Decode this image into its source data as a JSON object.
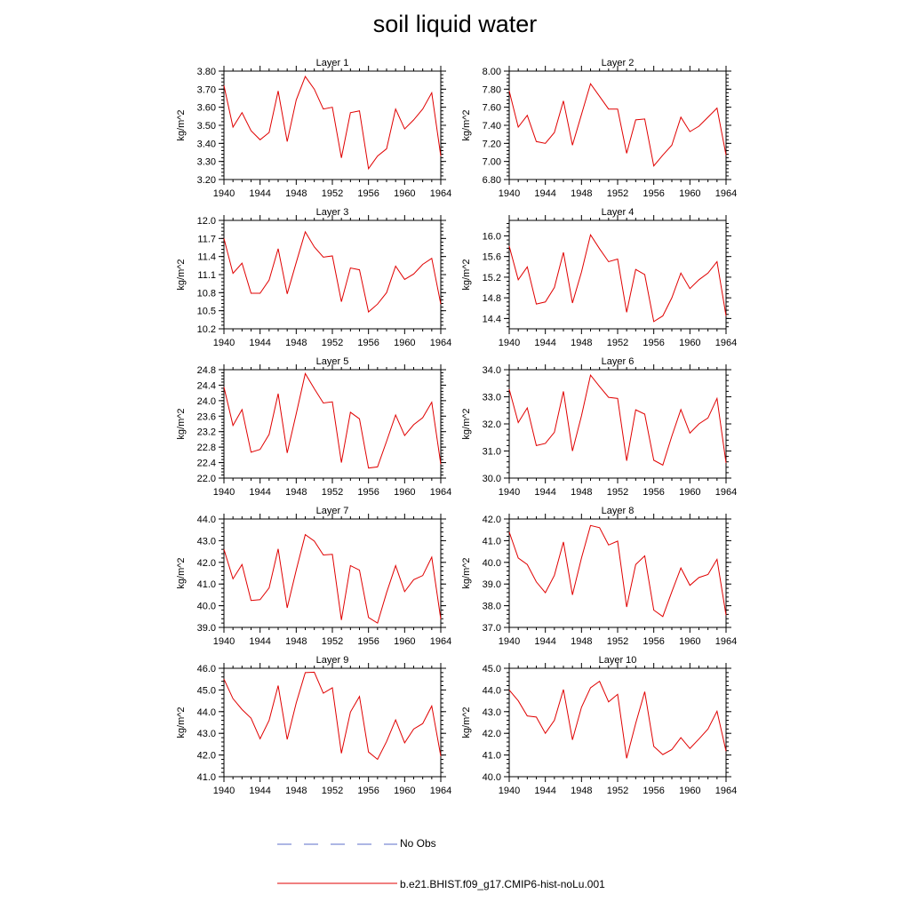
{
  "title": "soil liquid water",
  "colors": {
    "model_line": "#e00000",
    "obs_line": "#5b6ec8",
    "axis": "#000000"
  },
  "legend": {
    "obs_label": "No Obs",
    "model_label": "b.e21.BHIST.f09_g17.CMIP6-hist-noLu.001"
  },
  "chart_data": [
    {
      "type": "line",
      "title": "Layer 1",
      "ylabel": "kg/m^2",
      "xlim": [
        1940,
        1964
      ],
      "xticks": [
        1940,
        1944,
        1948,
        1952,
        1956,
        1960,
        1964
      ],
      "ylim": [
        3.2,
        3.8
      ],
      "yticks": [
        3.2,
        3.3,
        3.4,
        3.5,
        3.6,
        3.7,
        3.8
      ],
      "ydecimals": 2,
      "x": [
        1940,
        1941,
        1942,
        1943,
        1944,
        1945,
        1946,
        1947,
        1948,
        1949,
        1950,
        1951,
        1952,
        1953,
        1954,
        1955,
        1956,
        1957,
        1958,
        1959,
        1960,
        1961,
        1962,
        1963,
        1964
      ],
      "series": [
        {
          "name": "b.e21.BHIST.f09_g17.CMIP6-hist-noLu.001",
          "values": [
            3.72,
            3.49,
            3.57,
            3.47,
            3.42,
            3.46,
            3.69,
            3.41,
            3.64,
            3.77,
            3.7,
            3.59,
            3.6,
            3.32,
            3.57,
            3.58,
            3.26,
            3.33,
            3.37,
            3.59,
            3.48,
            3.53,
            3.59,
            3.68,
            3.33
          ]
        }
      ]
    },
    {
      "type": "line",
      "title": "Layer 2",
      "ylabel": "kg/m^2",
      "xlim": [
        1940,
        1964
      ],
      "xticks": [
        1940,
        1944,
        1948,
        1952,
        1956,
        1960,
        1964
      ],
      "ylim": [
        6.8,
        8.0
      ],
      "yticks": [
        6.8,
        7.0,
        7.2,
        7.4,
        7.6,
        7.8,
        8.0
      ],
      "ydecimals": 2,
      "x": [
        1940,
        1941,
        1942,
        1943,
        1944,
        1945,
        1946,
        1947,
        1948,
        1949,
        1950,
        1951,
        1952,
        1953,
        1954,
        1955,
        1956,
        1957,
        1958,
        1959,
        1960,
        1961,
        1962,
        1963,
        1964
      ],
      "series": [
        {
          "name": "b.e21.BHIST.f09_g17.CMIP6-hist-noLu.001",
          "values": [
            7.78,
            7.38,
            7.51,
            7.22,
            7.2,
            7.32,
            7.67,
            7.18,
            7.52,
            7.86,
            7.72,
            7.58,
            7.58,
            7.09,
            7.46,
            7.47,
            6.95,
            7.07,
            7.18,
            7.49,
            7.33,
            7.39,
            7.49,
            7.59,
            7.07
          ]
        }
      ]
    },
    {
      "type": "line",
      "title": "Layer 3",
      "ylabel": "kg/m^2",
      "xlim": [
        1940,
        1964
      ],
      "xticks": [
        1940,
        1944,
        1948,
        1952,
        1956,
        1960,
        1964
      ],
      "ylim": [
        10.2,
        12.0
      ],
      "yticks": [
        10.2,
        10.5,
        10.8,
        11.1,
        11.4,
        11.7,
        12.0
      ],
      "ydecimals": 1,
      "x": [
        1940,
        1941,
        1942,
        1943,
        1944,
        1945,
        1946,
        1947,
        1948,
        1949,
        1950,
        1951,
        1952,
        1953,
        1954,
        1955,
        1956,
        1957,
        1958,
        1959,
        1960,
        1961,
        1962,
        1963,
        1964
      ],
      "series": [
        {
          "name": "b.e21.BHIST.f09_g17.CMIP6-hist-noLu.001",
          "values": [
            11.7,
            11.12,
            11.29,
            10.79,
            10.79,
            11.01,
            11.53,
            10.78,
            11.3,
            11.81,
            11.56,
            11.39,
            11.41,
            10.65,
            11.21,
            11.18,
            10.48,
            10.61,
            10.8,
            11.24,
            11.02,
            11.11,
            11.27,
            11.37,
            10.61
          ]
        }
      ]
    },
    {
      "type": "line",
      "title": "Layer 4",
      "ylabel": "kg/m^2",
      "xlim": [
        1940,
        1964
      ],
      "xticks": [
        1940,
        1944,
        1948,
        1952,
        1956,
        1960,
        1964
      ],
      "ylim": [
        14.2,
        16.3
      ],
      "yticks": [
        14.4,
        14.8,
        15.2,
        15.6,
        16.0
      ],
      "ydecimals": 1,
      "x": [
        1940,
        1941,
        1942,
        1943,
        1944,
        1945,
        1946,
        1947,
        1948,
        1949,
        1950,
        1951,
        1952,
        1953,
        1954,
        1955,
        1956,
        1957,
        1958,
        1959,
        1960,
        1961,
        1962,
        1963,
        1964
      ],
      "series": [
        {
          "name": "b.e21.BHIST.f09_g17.CMIP6-hist-noLu.001",
          "values": [
            15.8,
            15.15,
            15.4,
            14.68,
            14.72,
            15.0,
            15.68,
            14.7,
            15.3,
            16.02,
            15.75,
            15.5,
            15.55,
            14.52,
            15.35,
            15.25,
            14.34,
            14.45,
            14.8,
            15.28,
            14.98,
            15.15,
            15.28,
            15.5,
            14.45
          ]
        }
      ]
    },
    {
      "type": "line",
      "title": "Layer 5",
      "ylabel": "kg/m^2",
      "xlim": [
        1940,
        1964
      ],
      "xticks": [
        1940,
        1944,
        1948,
        1952,
        1956,
        1960,
        1964
      ],
      "ylim": [
        22.0,
        24.8
      ],
      "yticks": [
        22.0,
        22.4,
        22.8,
        23.2,
        23.6,
        24.0,
        24.4,
        24.8
      ],
      "ydecimals": 1,
      "x": [
        1940,
        1941,
        1942,
        1943,
        1944,
        1945,
        1946,
        1947,
        1948,
        1949,
        1950,
        1951,
        1952,
        1953,
        1954,
        1955,
        1956,
        1957,
        1958,
        1959,
        1960,
        1961,
        1962,
        1963,
        1964
      ],
      "series": [
        {
          "name": "b.e21.BHIST.f09_g17.CMIP6-hist-noLu.001",
          "values": [
            24.35,
            23.36,
            23.77,
            22.67,
            22.74,
            23.13,
            24.18,
            22.65,
            23.66,
            24.7,
            24.31,
            23.94,
            23.97,
            22.4,
            23.7,
            23.53,
            22.26,
            22.29,
            22.95,
            23.63,
            23.1,
            23.38,
            23.56,
            23.96,
            22.36
          ]
        }
      ]
    },
    {
      "type": "line",
      "title": "Layer 6",
      "ylabel": "kg/m^2",
      "xlim": [
        1940,
        1964
      ],
      "xticks": [
        1940,
        1944,
        1948,
        1952,
        1956,
        1960,
        1964
      ],
      "ylim": [
        30.0,
        34.0
      ],
      "yticks": [
        30.0,
        31.0,
        32.0,
        33.0,
        34.0
      ],
      "ydecimals": 1,
      "x": [
        1940,
        1941,
        1942,
        1943,
        1944,
        1945,
        1946,
        1947,
        1948,
        1949,
        1950,
        1951,
        1952,
        1953,
        1954,
        1955,
        1956,
        1957,
        1958,
        1959,
        1960,
        1961,
        1962,
        1963,
        1964
      ],
      "series": [
        {
          "name": "b.e21.BHIST.f09_g17.CMIP6-hist-noLu.001",
          "values": [
            33.28,
            32.05,
            32.59,
            31.2,
            31.28,
            31.69,
            33.2,
            31.0,
            32.3,
            33.8,
            33.38,
            32.98,
            32.94,
            30.64,
            32.52,
            32.36,
            30.66,
            30.48,
            31.55,
            32.53,
            31.66,
            32.0,
            32.22,
            32.94,
            30.56
          ]
        }
      ]
    },
    {
      "type": "line",
      "title": "Layer 7",
      "ylabel": "kg/m^2",
      "xlim": [
        1940,
        1964
      ],
      "xticks": [
        1940,
        1944,
        1948,
        1952,
        1956,
        1960,
        1964
      ],
      "ylim": [
        39.0,
        44.0
      ],
      "yticks": [
        39.0,
        40.0,
        41.0,
        42.0,
        43.0,
        44.0
      ],
      "ydecimals": 1,
      "x": [
        1940,
        1941,
        1942,
        1943,
        1944,
        1945,
        1946,
        1947,
        1948,
        1949,
        1950,
        1951,
        1952,
        1953,
        1954,
        1955,
        1956,
        1957,
        1958,
        1959,
        1960,
        1961,
        1962,
        1963,
        1964
      ],
      "series": [
        {
          "name": "b.e21.BHIST.f09_g17.CMIP6-hist-noLu.001",
          "values": [
            42.6,
            41.24,
            41.9,
            40.24,
            40.28,
            40.82,
            42.62,
            39.9,
            41.64,
            43.28,
            42.98,
            42.34,
            42.37,
            39.34,
            41.85,
            41.64,
            39.46,
            39.2,
            40.6,
            41.85,
            40.65,
            41.2,
            41.39,
            42.24,
            39.38
          ]
        }
      ]
    },
    {
      "type": "line",
      "title": "Layer 8",
      "ylabel": "kg/m^2",
      "xlim": [
        1940,
        1964
      ],
      "xticks": [
        1940,
        1944,
        1948,
        1952,
        1956,
        1960,
        1964
      ],
      "ylim": [
        37.0,
        42.0
      ],
      "yticks": [
        37.0,
        38.0,
        39.0,
        40.0,
        41.0,
        42.0
      ],
      "ydecimals": 1,
      "x": [
        1940,
        1941,
        1942,
        1943,
        1944,
        1945,
        1946,
        1947,
        1948,
        1949,
        1950,
        1951,
        1952,
        1953,
        1954,
        1955,
        1956,
        1957,
        1958,
        1959,
        1960,
        1961,
        1962,
        1963,
        1964
      ],
      "series": [
        {
          "name": "b.e21.BHIST.f09_g17.CMIP6-hist-noLu.001",
          "values": [
            41.4,
            40.2,
            39.9,
            39.1,
            38.6,
            39.4,
            40.94,
            38.5,
            40.2,
            41.7,
            41.6,
            40.8,
            40.98,
            37.94,
            39.9,
            40.3,
            37.8,
            37.5,
            38.64,
            39.74,
            38.94,
            39.3,
            39.44,
            40.14,
            37.56
          ]
        }
      ]
    },
    {
      "type": "line",
      "title": "Layer 9",
      "ylabel": "kg/m^2",
      "xlim": [
        1940,
        1964
      ],
      "xticks": [
        1940,
        1944,
        1948,
        1952,
        1956,
        1960,
        1964
      ],
      "ylim": [
        41.0,
        46.0
      ],
      "yticks": [
        41.0,
        42.0,
        43.0,
        44.0,
        45.0,
        46.0
      ],
      "ydecimals": 1,
      "x": [
        1940,
        1941,
        1942,
        1943,
        1944,
        1945,
        1946,
        1947,
        1948,
        1949,
        1950,
        1951,
        1952,
        1953,
        1954,
        1955,
        1956,
        1957,
        1958,
        1959,
        1960,
        1961,
        1962,
        1963,
        1964
      ],
      "series": [
        {
          "name": "b.e21.BHIST.f09_g17.CMIP6-hist-noLu.001",
          "values": [
            45.5,
            44.6,
            44.1,
            43.7,
            42.75,
            43.6,
            45.2,
            42.72,
            44.4,
            45.8,
            45.82,
            44.85,
            45.1,
            42.08,
            43.98,
            44.7,
            42.14,
            41.8,
            42.62,
            43.62,
            42.56,
            43.2,
            43.45,
            44.26,
            41.95
          ]
        }
      ]
    },
    {
      "type": "line",
      "title": "Layer 10",
      "ylabel": "kg/m^2",
      "xlim": [
        1940,
        1964
      ],
      "xticks": [
        1940,
        1944,
        1948,
        1952,
        1956,
        1960,
        1964
      ],
      "ylim": [
        40.0,
        45.0
      ],
      "yticks": [
        40.0,
        41.0,
        42.0,
        43.0,
        44.0,
        45.0
      ],
      "ydecimals": 1,
      "x": [
        1940,
        1941,
        1942,
        1943,
        1944,
        1945,
        1946,
        1947,
        1948,
        1949,
        1950,
        1951,
        1952,
        1953,
        1954,
        1955,
        1956,
        1957,
        1958,
        1959,
        1960,
        1961,
        1962,
        1963,
        1964
      ],
      "series": [
        {
          "name": "b.e21.BHIST.f09_g17.CMIP6-hist-noLu.001",
          "values": [
            44.0,
            43.5,
            42.8,
            42.75,
            42.0,
            42.6,
            44.02,
            41.7,
            43.2,
            44.1,
            44.4,
            43.45,
            43.8,
            40.85,
            42.46,
            43.92,
            41.4,
            41.02,
            41.25,
            41.8,
            41.3,
            41.74,
            42.2,
            43.02,
            41.18
          ]
        }
      ]
    }
  ]
}
